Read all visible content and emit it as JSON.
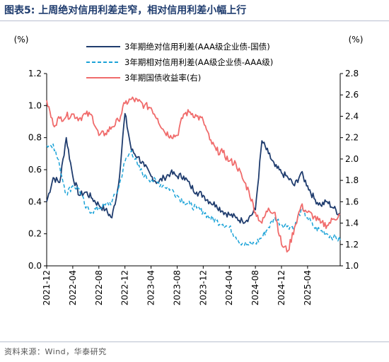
{
  "header": {
    "title": "图表5:  上周绝对信用利差走窄，相对信用利差小幅上行"
  },
  "footer": {
    "source": "资料来源：Wind，华泰研究"
  },
  "chart_data": {
    "type": "line",
    "title": "上周绝对信用利差走窄，相对信用利差小幅上行",
    "left_unit": "(%)",
    "right_unit": "(%)",
    "ylim_left": [
      0.0,
      1.2
    ],
    "ylim_right": [
      1.0,
      2.8
    ],
    "yticks_left": [
      "0.0",
      "0.2",
      "0.4",
      "0.6",
      "0.8",
      "1.0",
      "1.2"
    ],
    "yticks_right": [
      "1.0",
      "1.2",
      "1.4",
      "1.6",
      "1.8",
      "2.0",
      "2.2",
      "2.4",
      "2.6",
      "2.8"
    ],
    "xlim": [
      "2021-12",
      "2025-09"
    ],
    "xticks": [
      "2021-12",
      "2022-04",
      "2022-08",
      "2022-12",
      "2023-04",
      "2023-08",
      "2023-12",
      "2024-04",
      "2024-08",
      "2024-12",
      "2025-04"
    ],
    "legend_position": "top",
    "series": [
      {
        "name": "3年期绝对信用利差(AAA级企业债-国债)",
        "axis": "left",
        "color": "#1f3c6e",
        "style": "solid",
        "points": [
          [
            "2021-12",
            0.4
          ],
          [
            "2022-01",
            0.55
          ],
          [
            "2022-02",
            0.52
          ],
          [
            "2022-03",
            0.8
          ],
          [
            "2022-04",
            0.56
          ],
          [
            "2022-05",
            0.44
          ],
          [
            "2022-06",
            0.46
          ],
          [
            "2022-07",
            0.42
          ],
          [
            "2022-08",
            0.38
          ],
          [
            "2022-09",
            0.35
          ],
          [
            "2022-10",
            0.3
          ],
          [
            "2022-11",
            0.5
          ],
          [
            "2022-12",
            0.95
          ],
          [
            "2023-01",
            0.72
          ],
          [
            "2023-02",
            0.68
          ],
          [
            "2023-03",
            0.62
          ],
          [
            "2023-04",
            0.56
          ],
          [
            "2023-05",
            0.52
          ],
          [
            "2023-06",
            0.55
          ],
          [
            "2023-07",
            0.58
          ],
          [
            "2023-08",
            0.56
          ],
          [
            "2023-09",
            0.56
          ],
          [
            "2023-10",
            0.5
          ],
          [
            "2023-11",
            0.46
          ],
          [
            "2023-12",
            0.44
          ],
          [
            "2024-01",
            0.4
          ],
          [
            "2024-02",
            0.38
          ],
          [
            "2024-03",
            0.34
          ],
          [
            "2024-04",
            0.32
          ],
          [
            "2024-05",
            0.3
          ],
          [
            "2024-06",
            0.28
          ],
          [
            "2024-07",
            0.3
          ],
          [
            "2024-08",
            0.35
          ],
          [
            "2024-09",
            0.78
          ],
          [
            "2024-10",
            0.7
          ],
          [
            "2024-11",
            0.62
          ],
          [
            "2024-12",
            0.58
          ],
          [
            "2025-01",
            0.55
          ],
          [
            "2025-02",
            0.5
          ],
          [
            "2025-03",
            0.58
          ],
          [
            "2025-04",
            0.5
          ],
          [
            "2025-05",
            0.42
          ],
          [
            "2025-06",
            0.38
          ],
          [
            "2025-07",
            0.4
          ],
          [
            "2025-08",
            0.36
          ],
          [
            "2025-09",
            0.32
          ]
        ]
      },
      {
        "name": "3年期相对信用利差(AA级企业债-AAA级)",
        "axis": "left",
        "color": "#1ca3d8",
        "style": "dashed",
        "points": [
          [
            "2021-12",
            0.75
          ],
          [
            "2022-01",
            0.76
          ],
          [
            "2022-02",
            0.62
          ],
          [
            "2022-03",
            0.45
          ],
          [
            "2022-04",
            0.5
          ],
          [
            "2022-05",
            0.48
          ],
          [
            "2022-06",
            0.36
          ],
          [
            "2022-07",
            0.34
          ],
          [
            "2022-08",
            0.36
          ],
          [
            "2022-09",
            0.38
          ],
          [
            "2022-10",
            0.4
          ],
          [
            "2022-11",
            0.48
          ],
          [
            "2022-12",
            0.65
          ],
          [
            "2023-01",
            0.72
          ],
          [
            "2023-02",
            0.62
          ],
          [
            "2023-03",
            0.56
          ],
          [
            "2023-04",
            0.54
          ],
          [
            "2023-05",
            0.52
          ],
          [
            "2023-06",
            0.5
          ],
          [
            "2023-07",
            0.48
          ],
          [
            "2023-08",
            0.44
          ],
          [
            "2023-09",
            0.4
          ],
          [
            "2023-10",
            0.38
          ],
          [
            "2023-11",
            0.36
          ],
          [
            "2023-12",
            0.34
          ],
          [
            "2024-01",
            0.3
          ],
          [
            "2024-02",
            0.28
          ],
          [
            "2024-03",
            0.26
          ],
          [
            "2024-04",
            0.24
          ],
          [
            "2024-05",
            0.18
          ],
          [
            "2024-06",
            0.14
          ],
          [
            "2024-07",
            0.13
          ],
          [
            "2024-08",
            0.14
          ],
          [
            "2024-09",
            0.18
          ],
          [
            "2024-10",
            0.24
          ],
          [
            "2024-11",
            0.3
          ],
          [
            "2024-12",
            0.26
          ],
          [
            "2025-01",
            0.25
          ],
          [
            "2025-02",
            0.24
          ],
          [
            "2025-03",
            0.35
          ],
          [
            "2025-04",
            0.3
          ],
          [
            "2025-05",
            0.24
          ],
          [
            "2025-06",
            0.22
          ],
          [
            "2025-07",
            0.2
          ],
          [
            "2025-08",
            0.18
          ],
          [
            "2025-09",
            0.16
          ]
        ]
      },
      {
        "name": "3年期国债收益率(右)",
        "axis": "right",
        "color": "#f06b6b",
        "style": "solid",
        "points": [
          [
            "2021-12",
            2.55
          ],
          [
            "2022-01",
            2.32
          ],
          [
            "2022-02",
            2.38
          ],
          [
            "2022-03",
            2.4
          ],
          [
            "2022-04",
            2.42
          ],
          [
            "2022-05",
            2.38
          ],
          [
            "2022-06",
            2.42
          ],
          [
            "2022-07",
            2.4
          ],
          [
            "2022-08",
            2.22
          ],
          [
            "2022-09",
            2.24
          ],
          [
            "2022-10",
            2.3
          ],
          [
            "2022-11",
            2.36
          ],
          [
            "2022-12",
            2.52
          ],
          [
            "2023-01",
            2.56
          ],
          [
            "2023-02",
            2.54
          ],
          [
            "2023-03",
            2.5
          ],
          [
            "2023-04",
            2.48
          ],
          [
            "2023-05",
            2.38
          ],
          [
            "2023-06",
            2.26
          ],
          [
            "2023-07",
            2.22
          ],
          [
            "2023-08",
            2.22
          ],
          [
            "2023-09",
            2.42
          ],
          [
            "2023-10",
            2.44
          ],
          [
            "2023-11",
            2.4
          ],
          [
            "2023-12",
            2.36
          ],
          [
            "2024-01",
            2.18
          ],
          [
            "2024-02",
            2.08
          ],
          [
            "2024-03",
            2.06
          ],
          [
            "2024-04",
            1.98
          ],
          [
            "2024-05",
            1.96
          ],
          [
            "2024-06",
            1.82
          ],
          [
            "2024-07",
            1.7
          ],
          [
            "2024-08",
            1.5
          ],
          [
            "2024-09",
            1.4
          ],
          [
            "2024-10",
            1.54
          ],
          [
            "2024-11",
            1.5
          ],
          [
            "2024-12",
            1.2
          ],
          [
            "2025-01",
            1.14
          ],
          [
            "2025-02",
            1.36
          ],
          [
            "2025-03",
            1.56
          ],
          [
            "2025-04",
            1.5
          ],
          [
            "2025-05",
            1.46
          ],
          [
            "2025-06",
            1.4
          ],
          [
            "2025-07",
            1.38
          ],
          [
            "2025-08",
            1.44
          ],
          [
            "2025-09",
            1.48
          ]
        ]
      }
    ]
  }
}
